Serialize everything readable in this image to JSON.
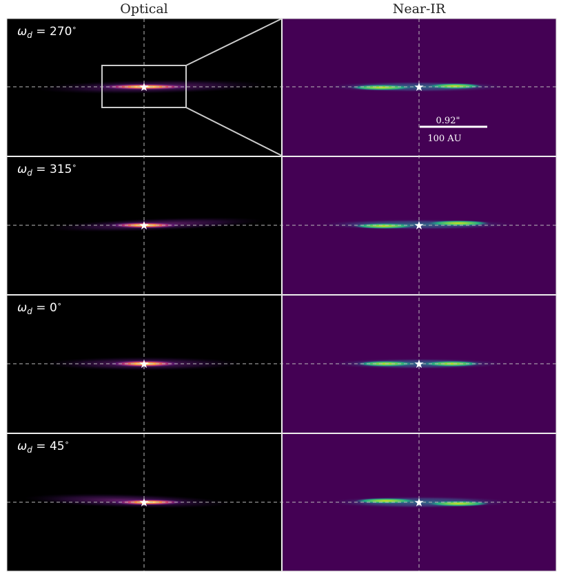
{
  "columns": {
    "left": "Optical",
    "right": "Near-IR"
  },
  "rows": [
    {
      "omega_deg": "270"
    },
    {
      "omega_deg": "315"
    },
    {
      "omega_deg": "0"
    },
    {
      "omega_deg": "45"
    }
  ],
  "scalebar": {
    "angular": "0.92\"",
    "physical": "100 AU"
  },
  "colors": {
    "optical_background": "#000000",
    "nearir_background": "#440154",
    "guide_line": "#bbbbbb",
    "frame": "#cccccc"
  }
}
